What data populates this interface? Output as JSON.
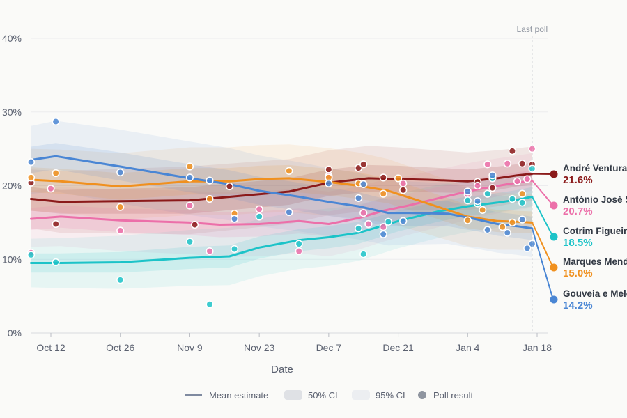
{
  "chart_data": {
    "type": "line",
    "ylim": [
      0,
      40
    ],
    "y_ticks": [
      "0%",
      "10%",
      "20%",
      "30%",
      "40%"
    ],
    "y_tick_values": [
      0,
      10,
      20,
      30,
      40
    ],
    "x_ticks": [
      "Oct 12",
      "Oct 26",
      "Nov 9",
      "Nov 23",
      "Dec 7",
      "Dec 21",
      "Jan 4",
      "Jan 18"
    ],
    "x_tick_days": [
      0,
      14,
      28,
      42,
      56,
      70,
      84,
      98
    ],
    "xlim_days": [
      -4,
      101
    ],
    "xlabel": "Date",
    "last_poll_label": "Last poll",
    "last_poll_day": 97,
    "grid": true,
    "legend": {
      "position": "bottom",
      "items": [
        {
          "label": "Mean estimate",
          "kind": "line"
        },
        {
          "label": "50% CI",
          "kind": "band50"
        },
        {
          "label": "95% CI",
          "kind": "band95"
        },
        {
          "label": "Poll result",
          "kind": "dot"
        }
      ]
    },
    "series": [
      {
        "name": "André Ventura",
        "color": "#8b1a1a",
        "final_label": "21.6%",
        "final_value": 21.6,
        "mean_days": [
          -4,
          2,
          14,
          28,
          38,
          48,
          56,
          64,
          70,
          76,
          84,
          90,
          94,
          97
        ],
        "mean_values": [
          18.2,
          17.8,
          17.9,
          18.0,
          18.6,
          19.2,
          20.4,
          21.0,
          20.9,
          20.8,
          20.6,
          21.0,
          21.4,
          21.6
        ],
        "band50": [
          1.6,
          1.6,
          1.7,
          1.8,
          1.8,
          1.8,
          1.8,
          1.8,
          1.8,
          1.7,
          1.6,
          1.6,
          1.5,
          1.5
        ],
        "band95": [
          4.0,
          4.2,
          4.4,
          4.6,
          4.5,
          4.4,
          4.4,
          4.4,
          4.3,
          4.1,
          3.9,
          3.8,
          3.7,
          3.7
        ],
        "polls_days": [
          -4,
          1,
          29,
          36,
          56,
          62,
          63,
          67,
          71,
          86,
          89,
          93,
          95,
          97
        ],
        "polls_values": [
          20.4,
          14.8,
          14.7,
          19.9,
          22.2,
          22.4,
          22.9,
          21.1,
          19.4,
          20.5,
          19.7,
          24.7,
          23.0,
          22.9
        ]
      },
      {
        "name": "António José Seguro",
        "color": "#ec6fa9",
        "final_label": "20.7%",
        "final_value": 20.7,
        "mean_days": [
          -4,
          2,
          14,
          28,
          34,
          42,
          50,
          56,
          62,
          67,
          72,
          80,
          86,
          92,
          97
        ],
        "mean_values": [
          15.5,
          15.8,
          15.3,
          15.0,
          14.7,
          14.8,
          15.2,
          14.8,
          15.6,
          16.6,
          17.3,
          18.6,
          19.5,
          20.2,
          20.7
        ],
        "band50": [
          1.5,
          1.5,
          1.6,
          1.7,
          1.7,
          1.7,
          1.7,
          1.7,
          1.7,
          1.7,
          1.6,
          1.5,
          1.5,
          1.4,
          1.4
        ],
        "band95": [
          3.8,
          4.0,
          4.2,
          4.3,
          4.4,
          4.4,
          4.4,
          4.4,
          4.3,
          4.2,
          4.0,
          3.9,
          3.8,
          3.7,
          3.7
        ],
        "polls_days": [
          -4,
          0,
          14,
          28,
          32,
          42,
          50,
          56,
          63,
          64,
          67,
          71,
          84,
          86,
          88,
          92,
          94,
          96,
          97
        ],
        "polls_values": [
          10.9,
          19.6,
          13.9,
          17.3,
          11.1,
          16.8,
          11.1,
          21.3,
          16.3,
          14.8,
          14.4,
          20.3,
          18.8,
          20.0,
          22.9,
          23.0,
          20.6,
          20.9,
          25.0
        ]
      },
      {
        "name": "Cotrim Figueiredo",
        "color": "#1cc3c8",
        "final_label": "18.5%",
        "final_value": 18.5,
        "mean_days": [
          -4,
          2,
          14,
          28,
          36,
          42,
          50,
          56,
          62,
          70,
          78,
          84,
          90,
          94,
          97
        ],
        "mean_values": [
          9.5,
          9.5,
          9.6,
          10.2,
          10.4,
          11.6,
          12.6,
          13.0,
          13.6,
          15.2,
          16.5,
          17.2,
          17.7,
          18.1,
          18.5
        ],
        "band50": [
          1.3,
          1.3,
          1.4,
          1.5,
          1.5,
          1.5,
          1.5,
          1.5,
          1.5,
          1.4,
          1.4,
          1.3,
          1.3,
          1.3,
          1.3
        ],
        "band95": [
          3.3,
          3.4,
          3.6,
          3.8,
          3.9,
          3.9,
          3.9,
          3.9,
          3.8,
          3.7,
          3.6,
          3.5,
          3.4,
          3.4,
          3.4
        ],
        "polls_days": [
          -4,
          1,
          14,
          28,
          32,
          37,
          42,
          50,
          62,
          63,
          68,
          84,
          86,
          88,
          89,
          93,
          95,
          97
        ],
        "polls_values": [
          10.6,
          9.6,
          7.2,
          12.4,
          3.9,
          11.4,
          15.8,
          12.1,
          14.2,
          10.7,
          15.1,
          18.0,
          17.6,
          18.9,
          21.0,
          18.2,
          17.7,
          22.3
        ]
      },
      {
        "name": "Marques Mendes",
        "color": "#f0901e",
        "final_label": "15.0%",
        "final_value": 15.0,
        "mean_days": [
          -4,
          2,
          14,
          28,
          36,
          42,
          48,
          56,
          62,
          68,
          74,
          84,
          90,
          94,
          97
        ],
        "mean_values": [
          20.8,
          20.6,
          19.9,
          20.6,
          20.6,
          20.9,
          21.0,
          20.5,
          20.0,
          19.3,
          18.0,
          15.8,
          15.2,
          15.1,
          15.0
        ],
        "band50": [
          1.7,
          1.7,
          1.8,
          1.8,
          1.8,
          1.8,
          1.8,
          1.8,
          1.8,
          1.7,
          1.7,
          1.6,
          1.5,
          1.5,
          1.5
        ],
        "band95": [
          4.2,
          4.3,
          4.5,
          4.6,
          4.6,
          4.6,
          4.6,
          4.6,
          4.5,
          4.3,
          4.2,
          4.0,
          3.9,
          3.8,
          3.8
        ],
        "polls_days": [
          -4,
          1,
          14,
          28,
          32,
          37,
          48,
          56,
          62,
          67,
          70,
          84,
          87,
          91,
          93,
          95
        ],
        "polls_values": [
          21.1,
          21.7,
          17.1,
          22.6,
          18.2,
          16.2,
          22.0,
          21.1,
          20.3,
          18.9,
          21.0,
          15.3,
          16.7,
          14.4,
          15.0,
          18.9
        ]
      },
      {
        "name": "Gouveia e Melo",
        "color": "#4a86d4",
        "final_label": "14.2%",
        "final_value": 14.2,
        "mean_days": [
          -4,
          1,
          14,
          28,
          36,
          42,
          50,
          56,
          62,
          68,
          72,
          80,
          86,
          90,
          94,
          97
        ],
        "mean_values": [
          23.5,
          24.0,
          22.6,
          21.0,
          20.2,
          19.3,
          18.5,
          17.8,
          17.2,
          16.3,
          16.3,
          16.2,
          15.4,
          14.8,
          14.5,
          14.2
        ],
        "band50": [
          1.8,
          1.8,
          1.9,
          1.9,
          1.9,
          1.9,
          1.9,
          1.9,
          1.9,
          1.8,
          1.8,
          1.7,
          1.6,
          1.6,
          1.6,
          1.6
        ],
        "band95": [
          4.6,
          4.8,
          5.0,
          5.0,
          4.9,
          4.8,
          4.7,
          4.6,
          4.5,
          4.4,
          4.3,
          4.1,
          4.0,
          3.9,
          3.9,
          3.9
        ],
        "polls_days": [
          -4,
          1,
          14,
          28,
          32,
          37,
          48,
          56,
          62,
          63,
          67,
          71,
          84,
          86,
          88,
          89,
          92,
          95,
          96,
          97
        ],
        "polls_values": [
          23.2,
          28.7,
          21.8,
          21.1,
          20.7,
          15.5,
          16.4,
          20.3,
          18.3,
          20.2,
          13.4,
          15.2,
          19.2,
          17.9,
          14.0,
          21.4,
          13.6,
          15.4,
          11.5,
          12.1
        ]
      }
    ]
  }
}
